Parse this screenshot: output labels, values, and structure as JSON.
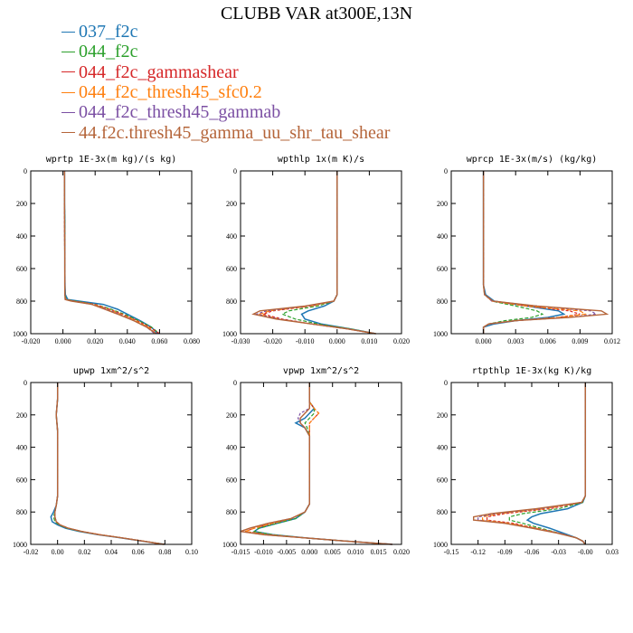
{
  "figure": {
    "title": "CLUBB VAR at300E,13N"
  },
  "legend": [
    {
      "label": "037_f2c",
      "color": "#1f77b4"
    },
    {
      "label": "044_f2c",
      "color": "#2ca02c"
    },
    {
      "label": "044_f2c_gammashear",
      "color": "#d62728"
    },
    {
      "label": "044_f2c_thresh45_sfc0.2",
      "color": "#ff7f0e"
    },
    {
      "label": "044_f2c_thresh45_gammab",
      "color": "#7b4fa3"
    },
    {
      "label": "44.f2c.thresh45_gamma_uu_shr_tau_shear",
      "color": "#b5653a"
    }
  ],
  "chart_data": [
    {
      "type": "line",
      "title": "wprtp  1E-3x(m kg)/(s kg)",
      "xlim": [
        -0.02,
        0.08
      ],
      "ylim": [
        0,
        1000
      ],
      "y_reversed": true,
      "xticks": [
        "-0.020",
        "0.000",
        "0.020",
        "0.040",
        "0.060",
        "0.080"
      ],
      "yticks": [
        "0",
        "200",
        "400",
        "600",
        "800",
        "1000"
      ],
      "x_tick_values": [
        -0.02,
        0.0,
        0.02,
        0.04,
        0.06,
        0.08
      ],
      "y": [
        0,
        100,
        200,
        300,
        400,
        500,
        600,
        700,
        760,
        790,
        800,
        820,
        850,
        880,
        920,
        960,
        1000
      ],
      "series": [
        {
          "values": [
            0.001,
            0.001,
            0.001,
            0.0012,
            0.0012,
            0.0012,
            0.0012,
            0.0013,
            0.0015,
            0.003,
            0.01,
            0.025,
            0.034,
            0.04,
            0.048,
            0.055,
            0.059
          ]
        },
        {
          "values": [
            0.001,
            0.001,
            0.001,
            0.0011,
            0.0011,
            0.0011,
            0.0012,
            0.0012,
            0.0013,
            0.002,
            0.008,
            0.02,
            0.03,
            0.038,
            0.047,
            0.055,
            0.06
          ]
        },
        {
          "values": [
            0.001,
            0.001,
            0.001,
            0.001,
            0.0011,
            0.0011,
            0.0011,
            0.0012,
            0.0012,
            0.0018,
            0.007,
            0.02,
            0.029,
            0.037,
            0.046,
            0.054,
            0.06
          ]
        },
        {
          "values": [
            0.001,
            0.001,
            0.001,
            0.001,
            0.0011,
            0.0011,
            0.0011,
            0.0012,
            0.0012,
            0.0015,
            0.006,
            0.019,
            0.028,
            0.036,
            0.045,
            0.053,
            0.058
          ]
        },
        {
          "values": [
            0.001,
            0.001,
            0.001,
            0.001,
            0.001,
            0.0011,
            0.0011,
            0.0011,
            0.0012,
            0.0014,
            0.006,
            0.018,
            0.027,
            0.035,
            0.044,
            0.052,
            0.057
          ]
        },
        {
          "values": [
            0.001,
            0.001,
            0.001,
            0.001,
            0.001,
            0.0011,
            0.0011,
            0.0011,
            0.0012,
            0.0014,
            0.005,
            0.018,
            0.026,
            0.034,
            0.044,
            0.052,
            0.058
          ]
        }
      ]
    },
    {
      "type": "line",
      "title": "wpthlp  1x(m K)/s",
      "xlim": [
        -0.03,
        0.02
      ],
      "ylim": [
        0,
        1000
      ],
      "y_reversed": true,
      "xticks": [
        "-0.030",
        "-0.020",
        "-0.010",
        "0.000",
        "0.010",
        "0.020"
      ],
      "yticks": [
        "0",
        "200",
        "400",
        "600",
        "800",
        "1000"
      ],
      "x_tick_values": [
        -0.03,
        -0.02,
        -0.01,
        0.0,
        0.01,
        0.02
      ],
      "y": [
        0,
        200,
        400,
        600,
        700,
        760,
        800,
        830,
        860,
        880,
        910,
        940,
        970,
        1000
      ],
      "series": [
        {
          "values": [
            0.0,
            0.0,
            0.0,
            0.0,
            0.0,
            0.0,
            -0.001,
            -0.004,
            -0.009,
            -0.011,
            -0.01,
            -0.005,
            0.004,
            0.012
          ]
        },
        {
          "values": [
            0.0,
            0.0,
            0.0,
            0.0,
            0.0,
            0.0,
            -0.001,
            -0.006,
            -0.015,
            -0.017,
            -0.013,
            -0.006,
            0.004,
            0.012
          ]
        },
        {
          "values": [
            0.0,
            0.0,
            0.0,
            0.0,
            0.0,
            0.0,
            -0.001,
            -0.008,
            -0.02,
            -0.023,
            -0.017,
            -0.008,
            0.003,
            0.012
          ]
        },
        {
          "values": [
            0.0,
            0.0,
            0.0,
            0.0,
            0.0,
            0.0,
            -0.001,
            -0.008,
            -0.021,
            -0.024,
            -0.018,
            -0.008,
            0.003,
            0.012
          ]
        },
        {
          "values": [
            0.0,
            0.0,
            0.0,
            0.0,
            0.0,
            0.0,
            -0.001,
            -0.009,
            -0.022,
            -0.025,
            -0.018,
            -0.008,
            0.003,
            0.012
          ]
        },
        {
          "values": [
            0.0,
            0.0,
            0.0,
            0.0,
            0.0,
            0.0,
            -0.001,
            -0.01,
            -0.024,
            -0.026,
            -0.019,
            -0.008,
            0.003,
            0.012
          ]
        }
      ]
    },
    {
      "type": "line",
      "title": "wprcp  1E-3x(m/s) (kg/kg)",
      "xlim": [
        -0.003,
        0.012
      ],
      "ylim": [
        0,
        1000
      ],
      "y_reversed": true,
      "xticks": [
        "0.000",
        "0.003",
        "0.006",
        "0.009",
        "0.012"
      ],
      "yticks": [
        "0",
        "200",
        "400",
        "600",
        "800",
        "1000"
      ],
      "x_tick_values": [
        0.0,
        0.003,
        0.006,
        0.009,
        0.012
      ],
      "y": [
        0,
        200,
        400,
        600,
        700,
        760,
        800,
        830,
        860,
        880,
        900,
        920,
        940,
        960,
        1000
      ],
      "series": [
        {
          "values": [
            0.0,
            0.0,
            0.0,
            0.0,
            0.0,
            0.0002,
            0.001,
            0.004,
            0.007,
            0.0075,
            0.006,
            0.003,
            0.001,
            0.0,
            0.0
          ]
        },
        {
          "values": [
            0.0,
            0.0,
            0.0,
            0.0,
            0.0,
            0.0001,
            0.0008,
            0.003,
            0.005,
            0.0055,
            0.0045,
            0.002,
            0.0005,
            0.0,
            0.0
          ]
        },
        {
          "values": [
            0.0,
            0.0,
            0.0,
            0.0,
            0.0,
            0.0001,
            0.0008,
            0.004,
            0.008,
            0.009,
            0.007,
            0.003,
            0.0005,
            0.0,
            0.0
          ]
        },
        {
          "values": [
            0.0,
            0.0,
            0.0,
            0.0,
            0.0,
            0.0001,
            0.0008,
            0.004,
            0.009,
            0.0095,
            0.007,
            0.003,
            0.0005,
            0.0,
            0.0
          ]
        },
        {
          "values": [
            0.0,
            0.0,
            0.0,
            0.0,
            0.0,
            0.0001,
            0.0008,
            0.005,
            0.01,
            0.0105,
            0.008,
            0.003,
            0.0005,
            0.0,
            0.0
          ]
        },
        {
          "values": [
            0.0,
            0.0,
            0.0,
            0.0,
            0.0,
            0.0001,
            0.0009,
            0.005,
            0.011,
            0.0115,
            0.008,
            0.003,
            0.0005,
            0.0,
            0.0
          ]
        }
      ]
    },
    {
      "type": "line",
      "title": "upwp   1xm^2/s^2",
      "xlim": [
        -0.02,
        0.1
      ],
      "ylim": [
        0,
        1000
      ],
      "y_reversed": true,
      "xticks": [
        "-0.02",
        "0.00",
        "0.02",
        "0.04",
        "0.06",
        "0.08",
        "0.10"
      ],
      "yticks": [
        "0",
        "200",
        "400",
        "600",
        "800",
        "1000"
      ],
      "x_tick_values": [
        -0.02,
        0.0,
        0.02,
        0.04,
        0.06,
        0.08,
        0.1
      ],
      "y": [
        0,
        100,
        200,
        300,
        500,
        700,
        760,
        800,
        830,
        860,
        880,
        900,
        920,
        940,
        960,
        980,
        1000
      ],
      "series": [
        {
          "values": [
            0.0,
            0.0,
            -0.001,
            0.0,
            0.0,
            0.0,
            -0.001,
            -0.003,
            -0.005,
            -0.004,
            0.0,
            0.006,
            0.016,
            0.03,
            0.047,
            0.063,
            0.08
          ]
        },
        {
          "values": [
            0.0,
            0.0,
            -0.001,
            0.0,
            0.0,
            0.0,
            -0.001,
            -0.002,
            -0.003,
            -0.002,
            0.001,
            0.007,
            0.017,
            0.031,
            0.048,
            0.064,
            0.08
          ]
        },
        {
          "values": [
            0.0,
            0.0,
            -0.001,
            0.0,
            0.0,
            0.0,
            -0.001,
            -0.002,
            -0.002,
            -0.001,
            0.002,
            0.008,
            0.018,
            0.032,
            0.048,
            0.064,
            0.08
          ]
        },
        {
          "values": [
            0.0,
            0.0,
            -0.001,
            0.0,
            0.0,
            0.0,
            -0.001,
            -0.002,
            -0.002,
            -0.001,
            0.002,
            0.008,
            0.018,
            0.032,
            0.048,
            0.064,
            0.079
          ]
        },
        {
          "values": [
            0.0,
            0.0,
            -0.001,
            0.0,
            0.0,
            0.0,
            -0.001,
            -0.002,
            -0.002,
            -0.001,
            0.002,
            0.008,
            0.018,
            0.031,
            0.048,
            0.064,
            0.078
          ]
        },
        {
          "values": [
            0.0,
            0.0,
            -0.001,
            0.0,
            0.0,
            0.0,
            -0.001,
            -0.002,
            -0.002,
            -0.001,
            0.002,
            0.008,
            0.018,
            0.031,
            0.048,
            0.064,
            0.079
          ]
        }
      ]
    },
    {
      "type": "line",
      "title": "vpwp   1xm^2/s^2",
      "xlim": [
        -0.015,
        0.02
      ],
      "ylim": [
        0,
        1000
      ],
      "y_reversed": true,
      "xticks": [
        "-0.015",
        "-0.010",
        "-0.005",
        "0.000",
        "0.005",
        "0.010",
        "0.015",
        "0.020"
      ],
      "yticks": [
        "0",
        "200",
        "400",
        "600",
        "800",
        "1000"
      ],
      "x_tick_values": [
        -0.015,
        -0.01,
        -0.005,
        0.0,
        0.005,
        0.01,
        0.015,
        0.02
      ],
      "y": [
        0,
        120,
        160,
        190,
        220,
        250,
        280,
        330,
        400,
        600,
        750,
        800,
        840,
        870,
        900,
        920,
        940,
        960,
        980,
        1000
      ],
      "series": [
        {
          "values": [
            0.0,
            0.0,
            0.001,
            0.0,
            -0.001,
            -0.003,
            -0.001,
            0.0,
            0.0,
            0.0,
            0.0,
            -0.001,
            -0.003,
            -0.007,
            -0.011,
            -0.012,
            -0.008,
            -0.001,
            0.008,
            0.018
          ]
        },
        {
          "values": [
            0.0,
            0.0,
            0.001,
            0.001,
            0.0,
            -0.001,
            -0.0005,
            0.0,
            0.0,
            0.0,
            0.0,
            -0.001,
            -0.003,
            -0.007,
            -0.011,
            -0.012,
            -0.008,
            -0.001,
            0.008,
            0.018
          ]
        },
        {
          "values": [
            0.0,
            0.0,
            0.001,
            0.002,
            0.001,
            0.0,
            0.0,
            0.0,
            0.0,
            0.0,
            0.0,
            -0.001,
            -0.004,
            -0.008,
            -0.012,
            -0.014,
            -0.009,
            -0.001,
            0.008,
            0.018
          ]
        },
        {
          "values": [
            0.0,
            0.0,
            0.001,
            0.002,
            0.001,
            0.0,
            0.0,
            0.0,
            0.0,
            0.0,
            0.0,
            -0.001,
            -0.004,
            -0.008,
            -0.012,
            -0.014,
            -0.009,
            -0.001,
            0.008,
            0.018
          ]
        },
        {
          "values": [
            0.0,
            0.0,
            0.0,
            -0.002,
            -0.0025,
            -0.002,
            -0.001,
            0.0,
            0.0,
            0.0,
            0.0,
            -0.001,
            -0.004,
            -0.009,
            -0.013,
            -0.015,
            -0.01,
            -0.001,
            0.008,
            0.018
          ]
        },
        {
          "values": [
            0.0,
            0.0,
            0.0,
            -0.001,
            -0.002,
            -0.002,
            -0.001,
            0.0,
            0.0,
            0.0,
            0.0,
            -0.001,
            -0.004,
            -0.009,
            -0.013,
            -0.015,
            -0.01,
            -0.001,
            0.008,
            0.018
          ]
        }
      ]
    },
    {
      "type": "line",
      "title": "rtpthlp  1E-3x(kg K)/kg",
      "xlim": [
        -0.15,
        0.03
      ],
      "ylim": [
        0,
        1000
      ],
      "y_reversed": true,
      "xticks": [
        "-0.15",
        "-0.12",
        "-0.09",
        "-0.06",
        "-0.03",
        "-0.00",
        "0.03"
      ],
      "yticks": [
        "0",
        "200",
        "400",
        "600",
        "800",
        "1000"
      ],
      "x_tick_values": [
        -0.15,
        -0.12,
        -0.09,
        -0.06,
        -0.03,
        0.0,
        0.03
      ],
      "y": [
        0,
        200,
        400,
        600,
        700,
        740,
        780,
        810,
        830,
        850,
        870,
        900,
        930,
        960,
        980,
        1000
      ],
      "series": [
        {
          "values": [
            0.0,
            0.0,
            0.0,
            0.0,
            0.0,
            -0.003,
            -0.02,
            -0.05,
            -0.06,
            -0.065,
            -0.058,
            -0.04,
            -0.025,
            -0.01,
            -0.003,
            0.0
          ]
        },
        {
          "values": [
            0.0,
            0.0,
            0.0,
            0.0,
            0.0,
            -0.003,
            -0.03,
            -0.07,
            -0.085,
            -0.085,
            -0.07,
            -0.05,
            -0.03,
            -0.01,
            -0.003,
            0.0
          ]
        },
        {
          "values": [
            0.0,
            0.0,
            0.0,
            0.0,
            0.0,
            -0.004,
            -0.04,
            -0.09,
            -0.11,
            -0.11,
            -0.08,
            -0.055,
            -0.03,
            -0.01,
            -0.003,
            0.0
          ]
        },
        {
          "values": [
            0.0,
            0.0,
            0.0,
            0.0,
            0.0,
            -0.004,
            -0.045,
            -0.095,
            -0.115,
            -0.115,
            -0.085,
            -0.055,
            -0.03,
            -0.01,
            -0.003,
            0.0
          ]
        },
        {
          "values": [
            0.0,
            0.0,
            0.0,
            0.0,
            0.0,
            -0.004,
            -0.05,
            -0.1,
            -0.12,
            -0.12,
            -0.09,
            -0.058,
            -0.03,
            -0.01,
            -0.003,
            0.0
          ]
        },
        {
          "values": [
            0.0,
            0.0,
            0.0,
            0.0,
            0.0,
            -0.004,
            -0.055,
            -0.105,
            -0.125,
            -0.125,
            -0.09,
            -0.06,
            -0.032,
            -0.01,
            -0.003,
            0.0
          ]
        }
      ]
    }
  ]
}
